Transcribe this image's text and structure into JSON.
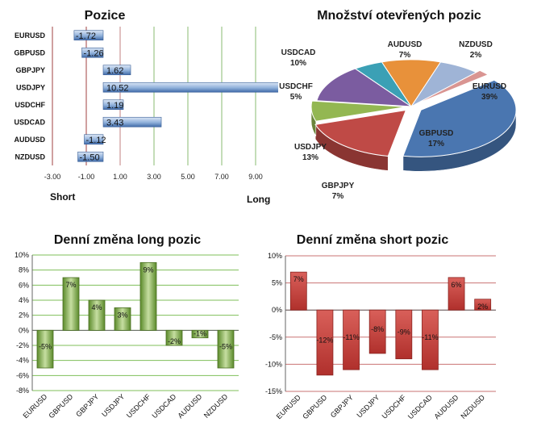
{
  "colors": {
    "bar_blue": "#4a78b4",
    "long_green": "#6a9a30",
    "short_red": "#c8403a",
    "grid_green": "#8cbf6a",
    "grid_red": "#c87a7a"
  },
  "chart_data": [
    {
      "type": "bar",
      "orientation": "horizontal",
      "title": "Pozice",
      "categories": [
        "EURUSD",
        "GBPUSD",
        "GBPJPY",
        "USDJPY",
        "USDCHF",
        "USDCAD",
        "AUDUSD",
        "NZDUSD"
      ],
      "values": [
        -1.72,
        -1.26,
        1.62,
        10.52,
        1.19,
        3.43,
        -1.12,
        -1.5
      ],
      "value_labels": [
        "-1.72",
        "-1.26",
        "1.62",
        "10.52",
        "1.19",
        "3.43",
        "-1.12",
        "-1.50"
      ],
      "xlim": [
        -3,
        10
      ],
      "xticks": [
        -3,
        -1,
        1,
        3,
        5,
        7,
        9
      ],
      "xtick_labels": [
        "-3.00",
        "-1.00",
        "1.00",
        "3.00",
        "5.00",
        "7.00",
        "9.00"
      ],
      "left_label": "Short",
      "right_label": "Long",
      "grid": true
    },
    {
      "type": "pie",
      "title": "Množství otevřených pozic",
      "slices": [
        {
          "name": "EURUSD",
          "value": 39,
          "label": "39%",
          "color": "#4a76b0"
        },
        {
          "name": "GBPUSD",
          "value": 17,
          "label": "17%",
          "color": "#bf4a46"
        },
        {
          "name": "GBPJPY",
          "value": 7,
          "label": "7%",
          "color": "#93b752"
        },
        {
          "name": "USDJPY",
          "value": 13,
          "label": "13%",
          "color": "#7b5ca0"
        },
        {
          "name": "USDCHF",
          "value": 5,
          "label": "5%",
          "color": "#3ba0b5"
        },
        {
          "name": "USDCAD",
          "value": 10,
          "label": "10%",
          "color": "#e8913a"
        },
        {
          "name": "AUDUSD",
          "value": 7,
          "label": "7%",
          "color": "#9fb4d6"
        },
        {
          "name": "NZDUSD",
          "value": 2,
          "label": "2%",
          "color": "#d99592"
        }
      ]
    },
    {
      "type": "bar",
      "title": "Denní změna long pozic",
      "categories": [
        "EURUSD",
        "GBPUSD",
        "GBPJPY",
        "USDJPY",
        "USDCHF",
        "USDCAD",
        "AUDUSD",
        "NZDUSD"
      ],
      "values": [
        -5,
        7,
        4,
        3,
        9,
        -2,
        -1,
        -5
      ],
      "value_labels": [
        "-5%",
        "7%",
        "4%",
        "3%",
        "9%",
        "-2%",
        "-1%",
        "-5%"
      ],
      "ylim": [
        -8,
        10
      ],
      "yticks": [
        -8,
        -6,
        -4,
        -2,
        0,
        2,
        4,
        6,
        8,
        10
      ],
      "ytick_labels": [
        "-8%",
        "-6%",
        "-4%",
        "-2%",
        "0%",
        "2%",
        "4%",
        "6%",
        "8%",
        "10%"
      ],
      "grid": true
    },
    {
      "type": "bar",
      "title": "Denní změna short pozic",
      "categories": [
        "EURUSD",
        "GBPUSD",
        "GBPJPY",
        "USDJPY",
        "USDCHF",
        "USDCAD",
        "AUDUSD",
        "NZDUSD"
      ],
      "values": [
        7,
        -12,
        -11,
        -8,
        -9,
        -11,
        6,
        2
      ],
      "value_labels": [
        "7%",
        "-12%",
        "-11%",
        "-8%",
        "-9%",
        "-11%",
        "6%",
        "2%"
      ],
      "ylim": [
        -15,
        10
      ],
      "yticks": [
        -15,
        -10,
        -5,
        0,
        5,
        10
      ],
      "ytick_labels": [
        "-15%",
        "-10%",
        "-5%",
        "0%",
        "5%",
        "10%"
      ],
      "grid": true
    }
  ]
}
